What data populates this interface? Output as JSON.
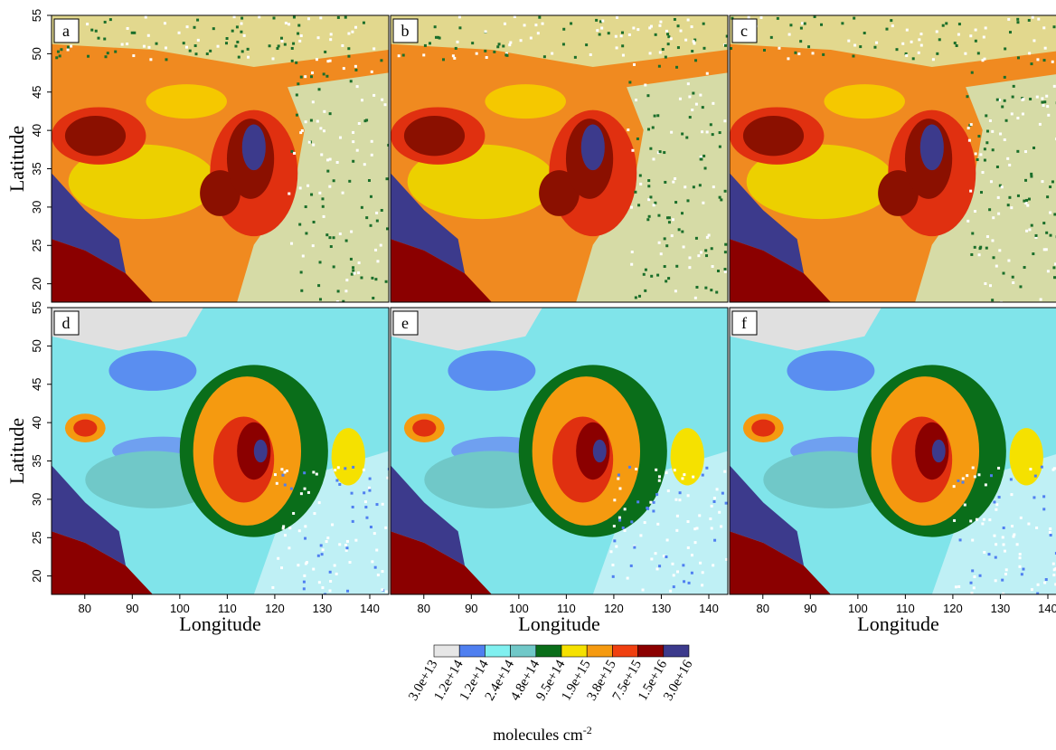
{
  "panel_labels": [
    "a",
    "b",
    "c",
    "d",
    "e",
    "f"
  ],
  "axes": {
    "x_label": "Longitude",
    "y_label": "Latitude",
    "xlim": [
      73,
      144
    ],
    "ylim": [
      17.6,
      55
    ],
    "xticks": [
      80,
      90,
      100,
      110,
      120,
      130,
      140
    ],
    "yticks": [
      20,
      25,
      30,
      35,
      40,
      45,
      50,
      55
    ]
  },
  "colorbar": {
    "colors": [
      "#e6e6e6",
      "#4f7ff0",
      "#80f0f0",
      "#70c8c8",
      "#0a6e1a",
      "#f5e100",
      "#f59a10",
      "#f04010",
      "#8b0000",
      "#3c3a8c"
    ],
    "labels": [
      "3.0e+13",
      "1.2e+14",
      "1.2e+14",
      "2.4e+14",
      "4.8e+14",
      "9.5e+14",
      "1.9e+15",
      "3.8e+15",
      "7.5e+15",
      "1.5e+16",
      "3.0e+16"
    ],
    "unit": "molecules cm",
    "unit_exponent": "-2"
  }
}
